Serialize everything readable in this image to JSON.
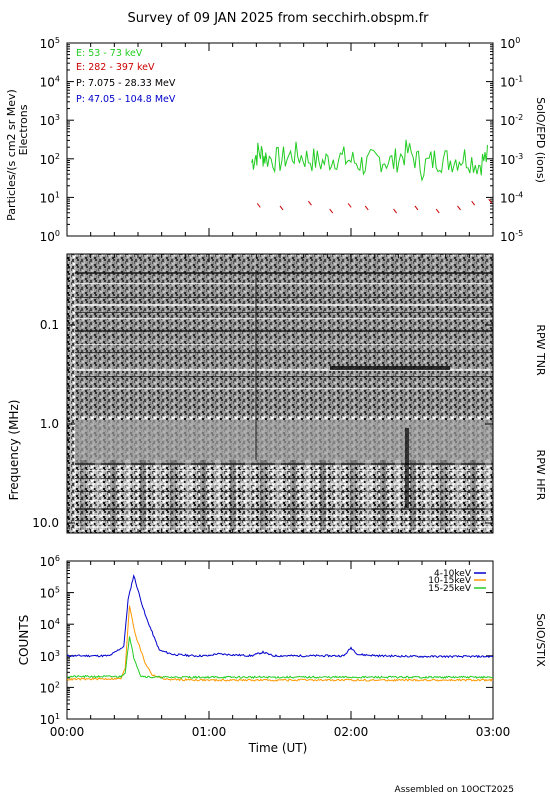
{
  "title": "Survey of 09 JAN 2025 from secchirh.obspm.fr",
  "footer": "Assembled on 10OCT2025",
  "x_axis": {
    "label": "Time (UT)",
    "ticks": [
      "00:00",
      "01:00",
      "02:00",
      "03:00"
    ],
    "range_hours": [
      0,
      3
    ]
  },
  "panels": {
    "epd": {
      "ylabel_left_1": "Particles/(s cm2 sr Mev)",
      "ylabel_left_2": "Electrons",
      "ylabel_right": "SolO/EPD (ions)",
      "left_ticks": [
        {
          "exp": 0,
          "label_base": "10",
          "label_exp": "0"
        },
        {
          "exp": 1,
          "label_base": "10",
          "label_exp": "1"
        },
        {
          "exp": 2,
          "label_base": "10",
          "label_exp": "2"
        },
        {
          "exp": 3,
          "label_base": "10",
          "label_exp": "3"
        },
        {
          "exp": 4,
          "label_base": "10",
          "label_exp": "4"
        },
        {
          "exp": 5,
          "label_base": "10",
          "label_exp": "5"
        }
      ],
      "right_ticks": [
        {
          "exp": -5,
          "label_base": "10",
          "label_exp": "-5"
        },
        {
          "exp": -4,
          "label_base": "10",
          "label_exp": "-4"
        },
        {
          "exp": -3,
          "label_base": "10",
          "label_exp": "-3"
        },
        {
          "exp": -2,
          "label_base": "10",
          "label_exp": "-2"
        },
        {
          "exp": -1,
          "label_base": "10",
          "label_exp": "-1"
        },
        {
          "exp": 0,
          "label_base": "10",
          "label_exp": "0"
        }
      ],
      "legend": [
        {
          "label": "E: 53 - 73 keV",
          "color": "#22cc22"
        },
        {
          "label": "E: 282 - 397 keV",
          "color": "#cc0000"
        },
        {
          "label": "P: 7.075 - 28.33 MeV",
          "color": "#000000"
        },
        {
          "label": "P: 47.05 - 104.8 MeV",
          "color": "#0000cc"
        }
      ]
    },
    "rpw": {
      "ylabel": "Frequency (MHz)",
      "tnr_label": "RPW TNR",
      "hfr_label": "RPW HFR",
      "ticks": [
        "0.1",
        "1.0",
        "10.0"
      ]
    },
    "stix": {
      "ylabel": "COUNTS",
      "ylabel_right": "SolO/STIX",
      "ticks": [
        {
          "exp": 1,
          "label_base": "10",
          "label_exp": "1"
        },
        {
          "exp": 2,
          "label_base": "10",
          "label_exp": "2"
        },
        {
          "exp": 3,
          "label_base": "10",
          "label_exp": "3"
        },
        {
          "exp": 4,
          "label_base": "10",
          "label_exp": "4"
        },
        {
          "exp": 5,
          "label_base": "10",
          "label_exp": "5"
        },
        {
          "exp": 6,
          "label_base": "10",
          "label_exp": "6"
        }
      ],
      "legend": [
        {
          "label": "4-10keV",
          "color": "#0000cc"
        },
        {
          "label": "10-15keV",
          "color": "#ff9900"
        },
        {
          "label": "15-25keV",
          "color": "#22cc22"
        }
      ]
    }
  },
  "chart_data": [
    {
      "type": "line",
      "title": "",
      "ylabel": "Particles/(s cm2 sr Mev) Electrons",
      "yscale": "log",
      "ylim": [
        1,
        100000
      ],
      "xlim": [
        0,
        3
      ],
      "series": [
        {
          "name": "E: 53 - 73 keV",
          "color": "#22cc22",
          "x": [
            1.3,
            1.35,
            1.4,
            1.5,
            1.6,
            1.7,
            1.8,
            1.9,
            2.0,
            2.1,
            2.2,
            2.3,
            2.4,
            2.5,
            2.6,
            2.7,
            2.8,
            2.9,
            2.97
          ],
          "y": [
            80,
            150,
            110,
            90,
            130,
            100,
            80,
            110,
            90,
            70,
            100,
            80,
            150,
            60,
            100,
            90,
            110,
            70,
            120
          ]
        },
        {
          "name": "E: 282 - 397 keV",
          "color": "#cc0000",
          "x": [
            1.34,
            1.5,
            1.7,
            1.85,
            1.98,
            2.1,
            2.3,
            2.45,
            2.6,
            2.75,
            2.85,
            2.97
          ],
          "y": [
            7,
            6,
            8,
            5,
            7,
            6,
            5,
            6,
            5,
            6,
            8,
            9
          ]
        }
      ]
    },
    {
      "type": "heatmap",
      "ylabel": "Frequency (MHz)",
      "yscale": "log",
      "ylim": [
        0.0045,
        14
      ],
      "xlim": [
        0,
        3
      ],
      "instruments": [
        "RPW TNR",
        "RPW HFR"
      ]
    },
    {
      "type": "line",
      "ylabel": "COUNTS",
      "yscale": "log",
      "ylim": [
        10,
        1000000
      ],
      "xlim": [
        0,
        3
      ],
      "series": [
        {
          "name": "4-10keV",
          "color": "#0000cc",
          "x": [
            0.0,
            0.3,
            0.4,
            0.43,
            0.47,
            0.55,
            0.65,
            0.75,
            0.9,
            1.0,
            1.05,
            1.3,
            1.38,
            1.45,
            1.7,
            1.95,
            2.0,
            2.05,
            2.2,
            2.5,
            3.0
          ],
          "y": [
            1000,
            1000,
            2000,
            60000,
            350000,
            20000,
            1500,
            1100,
            1000,
            1000,
            1150,
            1000,
            1300,
            1000,
            1000,
            1000,
            1800,
            1100,
            1000,
            950,
            950
          ]
        },
        {
          "name": "10-15keV",
          "color": "#ff9900",
          "x": [
            0.0,
            0.38,
            0.41,
            0.44,
            0.48,
            0.55,
            0.6,
            0.7,
            1.0,
            2.0,
            3.0
          ],
          "y": [
            180,
            190,
            400,
            40000,
            5000,
            600,
            250,
            180,
            170,
            170,
            170
          ]
        },
        {
          "name": "15-25keV",
          "color": "#22cc22",
          "x": [
            0.0,
            0.38,
            0.41,
            0.44,
            0.47,
            0.52,
            0.6,
            1.0,
            2.0,
            3.0
          ],
          "y": [
            220,
            220,
            300,
            4000,
            900,
            230,
            210,
            210,
            210,
            210
          ]
        }
      ]
    }
  ]
}
